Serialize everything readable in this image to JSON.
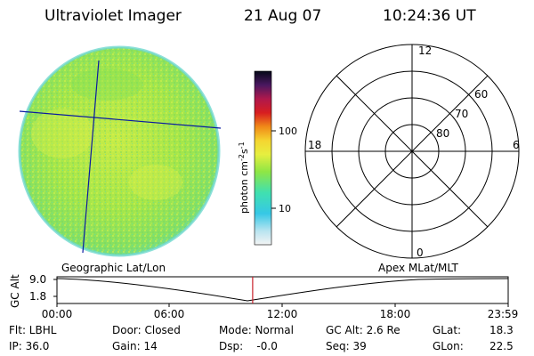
{
  "header": {
    "title": "Ultraviolet Imager",
    "date": "21 Aug 07",
    "time": "10:24:36 UT"
  },
  "colorbar": {
    "unit_label": "photon cm-2s-1",
    "tick_labels": [
      "100",
      "10"
    ],
    "scale": "log"
  },
  "polar_plot": {
    "lat_labels": [
      "60",
      "70",
      "80"
    ],
    "mlt_labels": [
      "12",
      "18",
      "6",
      "0"
    ]
  },
  "track_plot": {
    "left_label": "Geographic Lat/Lon",
    "right_label": "Apex MLat/MLT",
    "y_axis_label": "GC Alt",
    "y_ticks": [
      "9.0",
      "1.8"
    ],
    "x_ticks": [
      "00:00",
      "06:00",
      "12:00",
      "18:00",
      "23:59"
    ],
    "current_time_fraction": 0.4337
  },
  "status": {
    "flt": "Flt: LBHL",
    "ip": "IP: 36.0",
    "door": "Door: Closed",
    "gain": "Gain: 14",
    "mode": "Mode: Normal",
    "dsp": "Dsp:    -0.0",
    "gc_alt": "GC Alt: 2.6 Re",
    "seq": "Seq: 39",
    "glat_label": "GLat:",
    "glat_value": "18.3",
    "glon_label": "GLon:",
    "glon_value": "22.5"
  },
  "colors": {
    "disk_green": "#93e84a",
    "disk_yellow": "#d2ef4a",
    "disk_cyan": "#6fe0c6",
    "grid_line": "#0a1aa0",
    "marker_red": "#c8202a"
  }
}
